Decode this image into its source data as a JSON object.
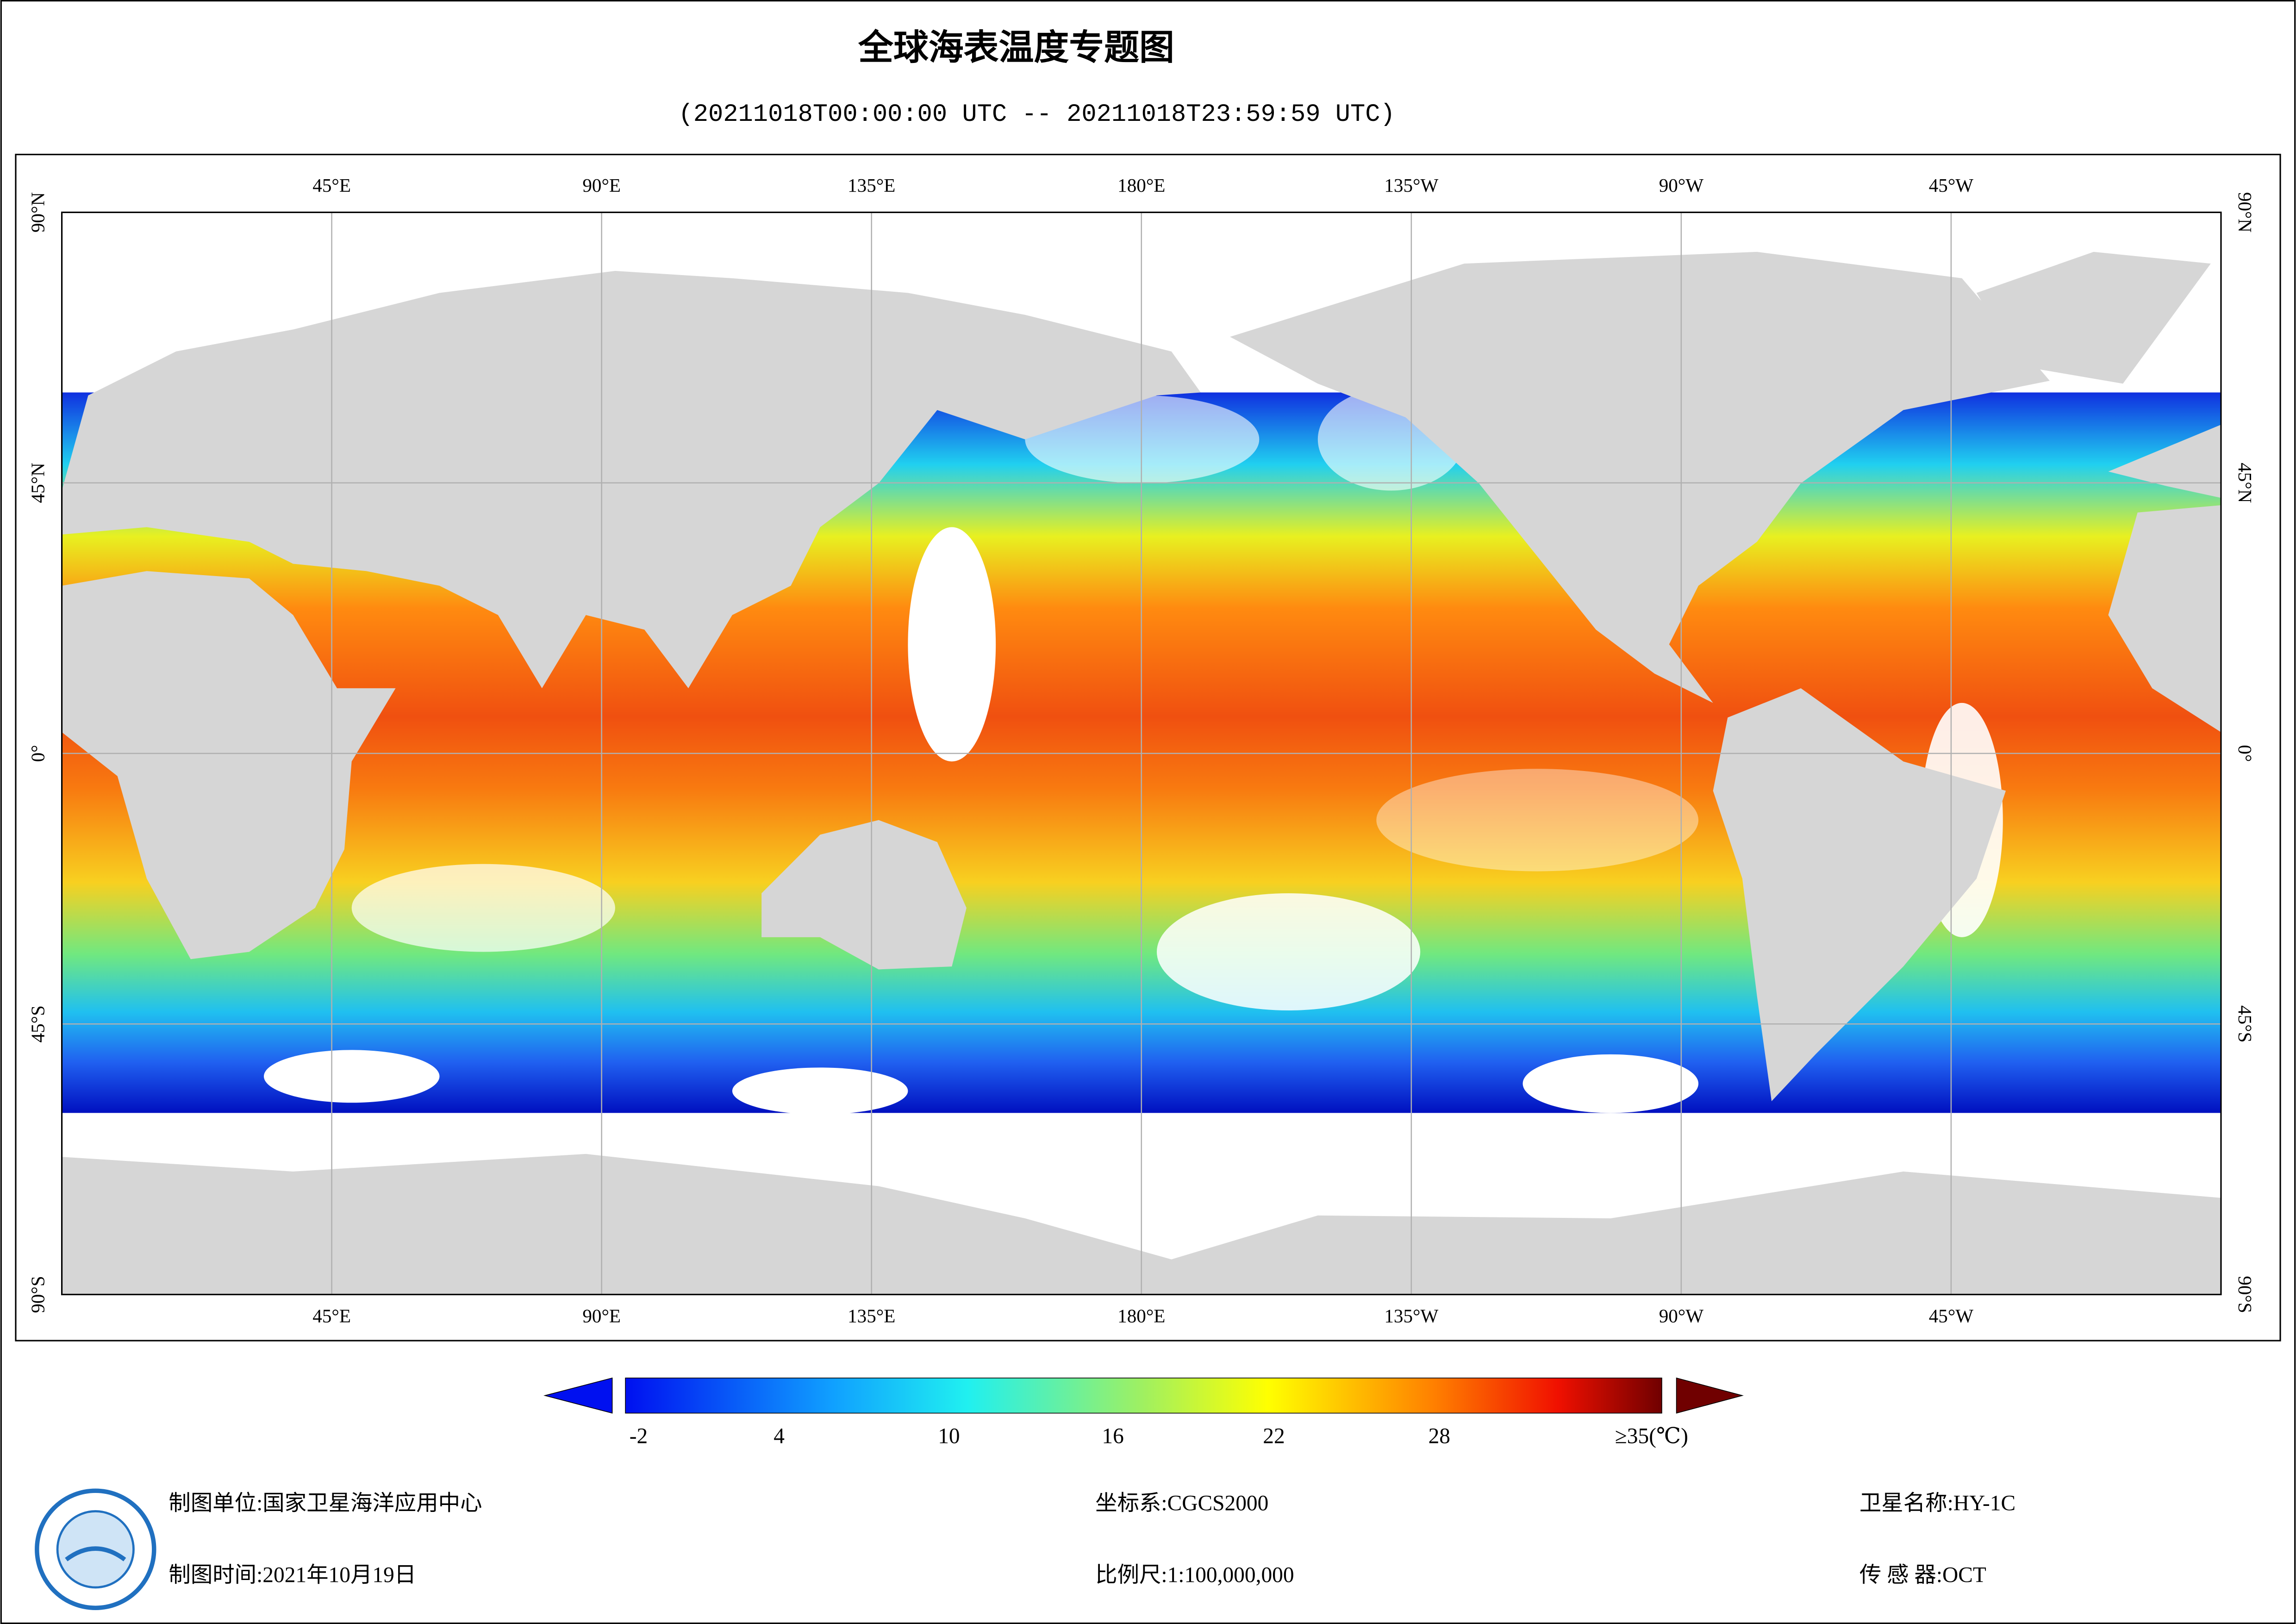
{
  "title": "全球海表温度专题图",
  "subtitle": "(20211018T00:00:00 UTC -- 20211018T23:59:59 UTC)",
  "map": {
    "lon_labels": [
      "45°E",
      "90°E",
      "135°E",
      "180°E",
      "135°W",
      "90°W",
      "45°W"
    ],
    "lat_labels": [
      "90°N",
      "45°N",
      "0°",
      "45°S",
      "90°S"
    ]
  },
  "colorbar": {
    "labels": [
      "-2",
      "4",
      "10",
      "16",
      "22",
      "28",
      "≥35(℃)"
    ]
  },
  "footer": {
    "unit": "制图单位:国家卫星海洋应用中心",
    "date": "制图时间:2021年10月19日",
    "crs": "坐标系:CGCS2000",
    "scale": "比例尺:1:100,000,000",
    "satellite": "卫星名称:HY-1C",
    "sensor": "传 感 器:OCT"
  }
}
